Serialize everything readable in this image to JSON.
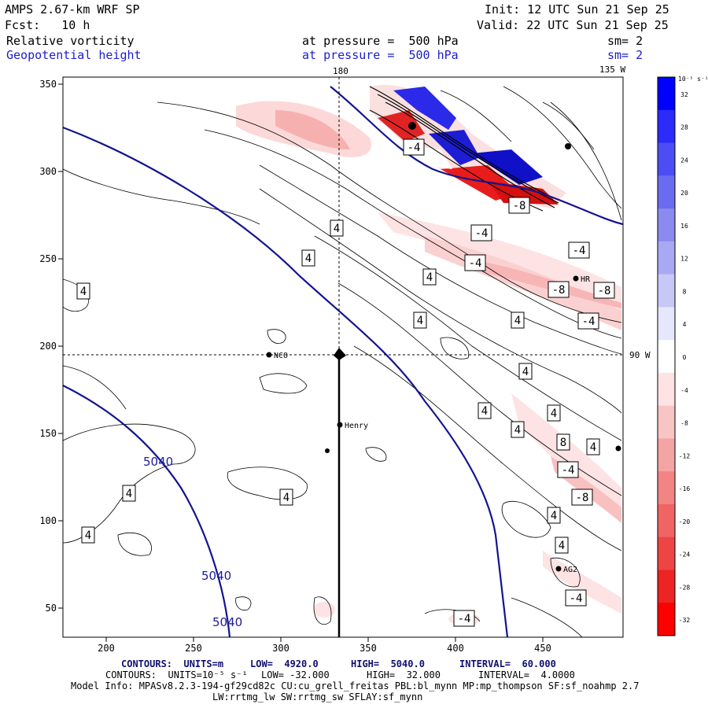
{
  "header": {
    "model": "AMPS 2.67-km WRF SP",
    "init": "Init: 12 UTC Sun 21 Sep 25",
    "fcst": "Fcst:   10 h",
    "valid": "Valid: 22 UTC Sun 21 Sep 25",
    "field1": "Relative vorticity",
    "field2": "Geopotential height",
    "pressure1": "at pressure =  500 hPa",
    "pressure2": "at pressure =  500 hPa",
    "sm1": "sm= 2",
    "sm2": "sm= 2"
  },
  "map": {
    "lon_top_label": "180",
    "lon_topright_label": "135 W",
    "lon_right_label": "90 W",
    "x_ticks": [
      "200",
      "250",
      "300",
      "350",
      "400",
      "450"
    ],
    "y_ticks": [
      "350",
      "300",
      "250",
      "200",
      "150",
      "100",
      "50"
    ],
    "stations": [
      "NCO",
      "Henry",
      "HR",
      "AG2"
    ],
    "vort_labels": [
      "4",
      "4",
      "4",
      "4",
      "4",
      "4",
      "4",
      "4",
      "4",
      "4",
      "4",
      "4",
      "4",
      "4",
      "4",
      "4",
      "-4",
      "-4",
      "-4",
      "-4",
      "-4",
      "-4",
      "-4",
      "-4",
      "-8",
      "-8",
      "-8",
      "-8",
      "8"
    ],
    "height_labels": [
      "5040",
      "5040",
      "5040"
    ]
  },
  "colorbar": {
    "unit": "10⁻⁵ s⁻¹",
    "ticks": [
      "32",
      "28",
      "24",
      "20",
      "16",
      "12",
      "8",
      "4",
      "0",
      "-4",
      "-8",
      "-12",
      "-16",
      "-20",
      "-24",
      "-28",
      "-32"
    ],
    "colors": [
      "#0000ff",
      "#2b2bfa",
      "#4d4df5",
      "#6b6bf0",
      "#8a8aef",
      "#a9a9f3",
      "#c8c8f7",
      "#e6e6fc",
      "#ffffff",
      "#fde3e3",
      "#f9c4c4",
      "#f5a4a4",
      "#f38484",
      "#f06464",
      "#ee4444",
      "#ec2424",
      "#ff0000"
    ]
  },
  "footer": {
    "contours1_label": "CONTOURS:  UNITS=m",
    "contours1_low": "LOW=  4920.0",
    "contours1_high": "HIGH=  5040.0",
    "contours1_interval": "INTERVAL=  60.000",
    "contours2_label": "CONTOURS:  UNITS=10⁻⁵ s⁻¹",
    "contours2_low": "LOW= -32.000",
    "contours2_high": "HIGH=  32.000",
    "contours2_interval": "INTERVAL=  4.0000",
    "model_info": "Model Info: MPASv8.2.3-194-gf29cd82c CU:cu_grell_freitas PBL:bl_mynn MP:mp_thompson SF:sf_noahmp 2.7",
    "model_info2": "LW:rrtmg_lw SW:rrtmg_sw SFLAY:sf_mynn"
  }
}
